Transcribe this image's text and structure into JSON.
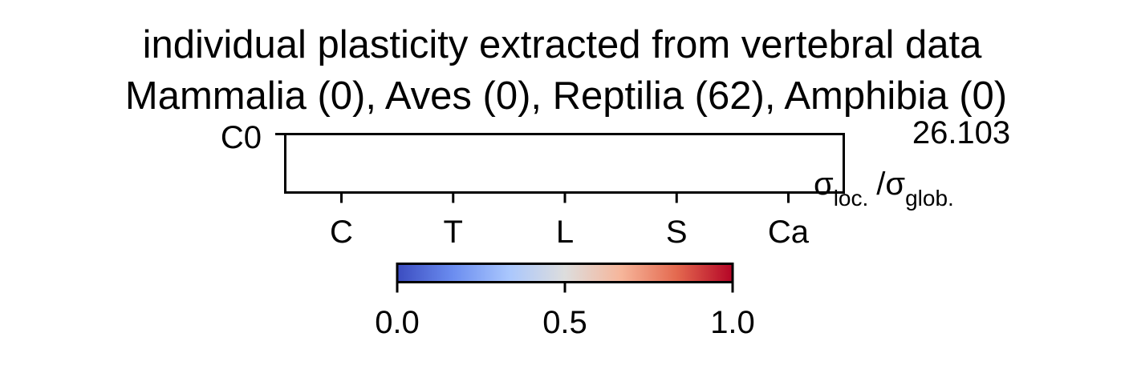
{
  "chart_data": {
    "type": "heatmap",
    "title": "individual plasticity extracted from vertebral data",
    "subtitle": "Mammalia (0), Aves (0), Reptilia (62), Amphibia (0)",
    "rows": [
      "C0"
    ],
    "columns": [
      "C",
      "T",
      "L",
      "S",
      "Ca"
    ],
    "values": [
      [
        null,
        null,
        null,
        null,
        null
      ]
    ],
    "row_annotation": "26.103",
    "annotation_label": {
      "main": "σ",
      "sub1": "loc.",
      "sep": "/σ",
      "sub2": "glob."
    },
    "colorbar": {
      "colormap": "coolwarm",
      "range": [
        0.0,
        1.0
      ],
      "ticks": [
        0.0,
        0.5,
        1.0
      ],
      "tick_labels": [
        "0.0",
        "0.5",
        "1.0"
      ],
      "stops": [
        "#3b4cc0",
        "#6b8df0",
        "#aac7fd",
        "#dddddd",
        "#f6b69b",
        "#e4694f",
        "#b40426"
      ]
    }
  }
}
